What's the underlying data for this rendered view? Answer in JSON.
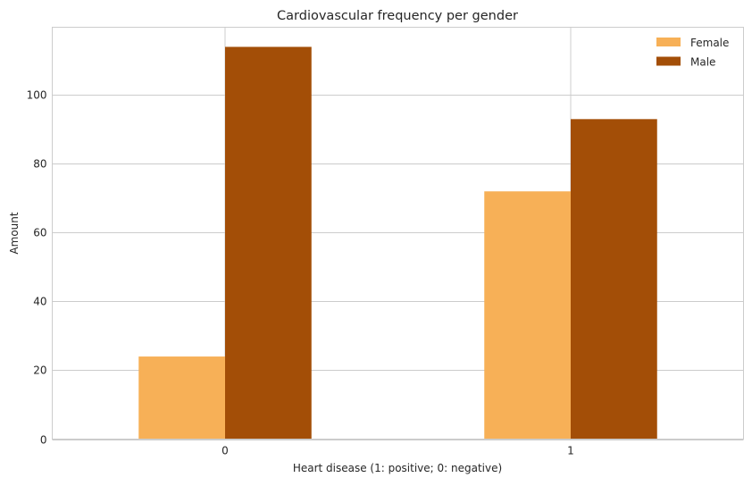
{
  "chart_data": {
    "type": "bar",
    "title": "Cardiovascular frequency per gender",
    "xlabel": "Heart disease (1: positive; 0: negative)",
    "ylabel": "Amount",
    "categories": [
      "0",
      "1"
    ],
    "series": [
      {
        "name": "Female",
        "values": [
          24,
          72
        ],
        "color": "#f7b057"
      },
      {
        "name": "Male",
        "values": [
          114,
          93
        ],
        "color": "#a34e07"
      }
    ],
    "ylim": [
      0,
      119.7
    ],
    "yticks": [
      0,
      20,
      40,
      60,
      80,
      100
    ],
    "grid": true,
    "legend_position": "top-right"
  }
}
